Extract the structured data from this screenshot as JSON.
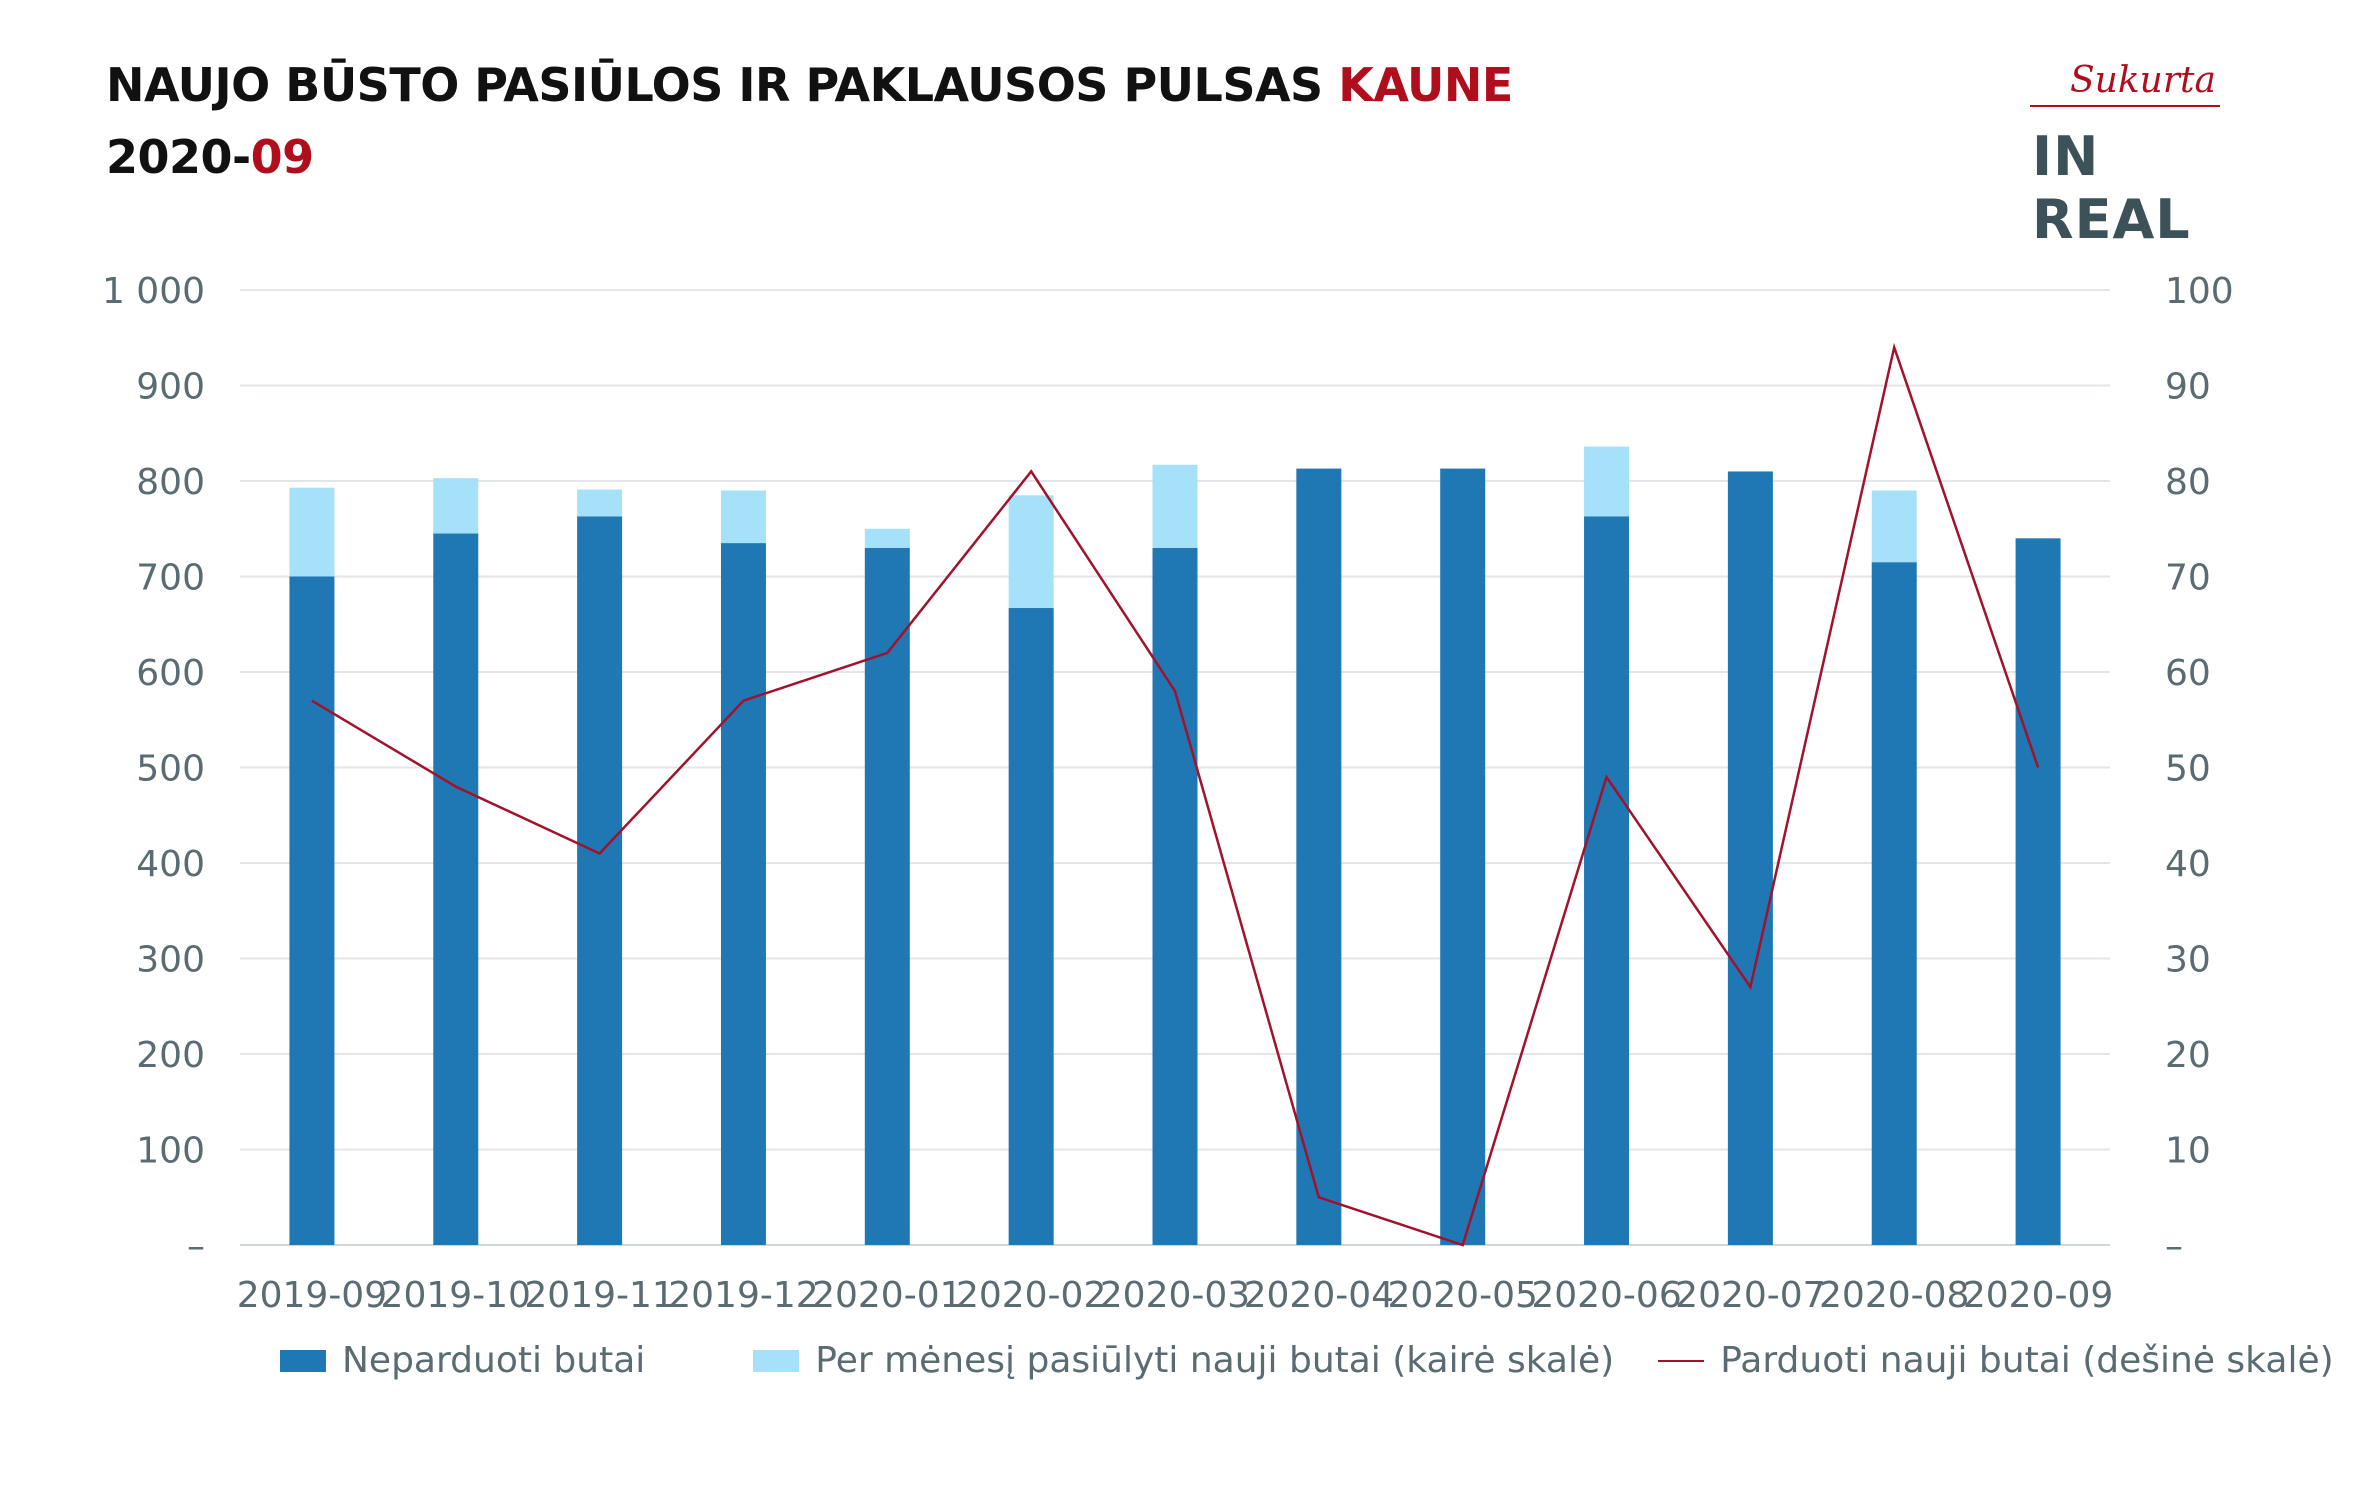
{
  "header": {
    "title_main": "NAUJO BŪSTO PASIŪLOS IR PAKLAUSOS PULSAS ",
    "title_city": "KAUNE",
    "date_prefix": "2020-",
    "date_month": "09"
  },
  "logo": {
    "tagline": "Sukurta",
    "brand": "IN REAL"
  },
  "colors": {
    "unsold": "#1f78b4",
    "offered": "#a6e1fa",
    "sold": "#a1122b",
    "accent": "#b00d1d",
    "grid": "#e3e6e8",
    "text": "#5a6b72"
  },
  "chart_data": {
    "type": "bar",
    "stacked": true,
    "categories": [
      "2019-09",
      "2019-10",
      "2019-11",
      "2019-12",
      "2020-01",
      "2020-02",
      "2020-03",
      "2020-04",
      "2020-05",
      "2020-06",
      "2020-07",
      "2020-08",
      "2020-09"
    ],
    "series": [
      {
        "name": "Neparduoti butai",
        "type": "bar",
        "axis": "left",
        "values": [
          700,
          745,
          763,
          735,
          730,
          667,
          730,
          813,
          813,
          763,
          810,
          715,
          740
        ]
      },
      {
        "name": "Per mėnesį pasiūlyti nauji butai (kairė skalė)",
        "type": "bar",
        "axis": "left",
        "values": [
          93,
          58,
          28,
          55,
          20,
          118,
          87,
          0,
          0,
          73,
          0,
          75,
          0
        ]
      },
      {
        "name": "Parduoti nauji butai (dešinė skalė)",
        "type": "line",
        "axis": "right",
        "values": [
          57,
          48,
          41,
          57,
          62,
          81,
          58,
          5,
          0,
          49,
          27,
          94,
          50
        ]
      }
    ],
    "y_left": {
      "ylim": [
        0,
        1000
      ],
      "ticks": [
        "–",
        "100",
        "200",
        "300",
        "400",
        "500",
        "600",
        "700",
        "800",
        "900",
        "1 000"
      ]
    },
    "y_right": {
      "ylim": [
        0,
        100
      ],
      "ticks": [
        "–",
        "10",
        "20",
        "30",
        "40",
        "50",
        "60",
        "70",
        "80",
        "90",
        "100"
      ]
    },
    "grid": true,
    "legend_position": "bottom"
  }
}
